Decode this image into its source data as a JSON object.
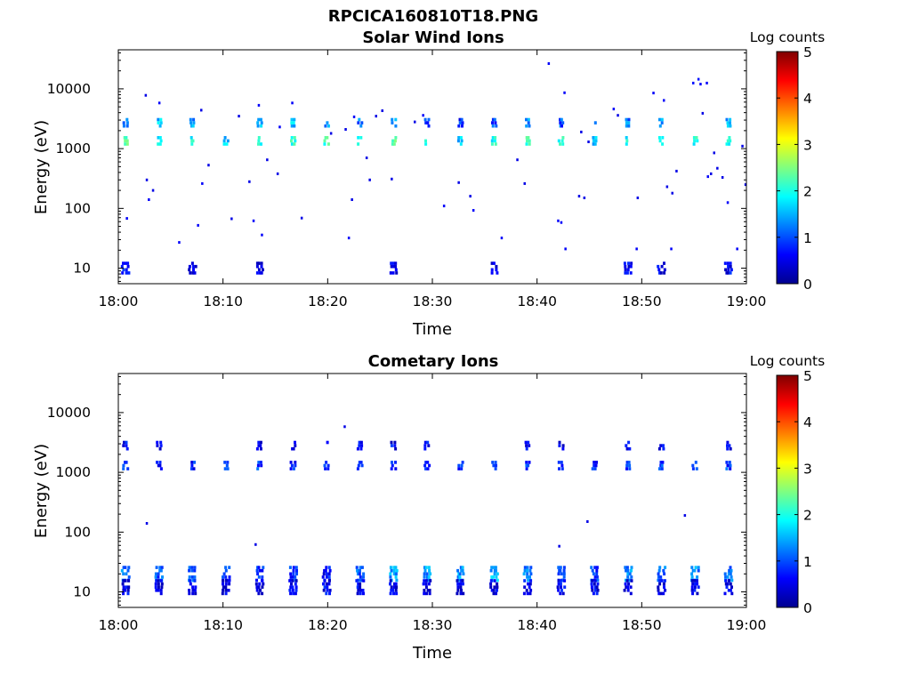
{
  "figure_title": "RPCICA160810T18.PNG",
  "colorbar": {
    "label": "Log counts",
    "ticks": [
      "0",
      "1",
      "2",
      "3",
      "4",
      "5"
    ]
  },
  "chart_data": [
    {
      "type": "heatmap",
      "title": "Solar Wind Ions",
      "xlabel": "Time",
      "ylabel": "Energy (eV)",
      "x_ticks": [
        "18:00",
        "18:10",
        "18:20",
        "18:30",
        "18:40",
        "18:50",
        "19:00"
      ],
      "y_ticks": [
        "10",
        "100",
        "1000",
        "10000"
      ],
      "xlim_minutes": [
        0,
        60
      ],
      "ylim_eV": [
        5.5,
        45000
      ],
      "yscale": "log",
      "zlim": [
        0,
        5
      ],
      "colormap": "jet",
      "dense_columns_minutes": [
        0.7,
        3.9,
        7.1,
        10.3,
        13.5,
        16.7,
        19.9,
        23.1,
        26.3,
        29.5,
        32.7,
        35.9,
        39.1,
        42.3,
        45.5,
        48.7,
        51.9,
        55.1,
        58.3
      ],
      "bands": [
        {
          "energy_eV": 2700,
          "log_counts": [
            1.2,
            1.6,
            1.4,
            0,
            1.5,
            1.6,
            1.3,
            1.2,
            1.5,
            1.0,
            0.8,
            0.9,
            1.4,
            1.0,
            0.9,
            1.2,
            1.3,
            0,
            1.5
          ]
        },
        {
          "energy_eV": 1350,
          "log_counts": [
            2.2,
            1.8,
            1.9,
            1.7,
            2.0,
            2.1,
            2.1,
            2.0,
            2.2,
            2.0,
            1.6,
            2.0,
            2.1,
            2.0,
            1.5,
            1.9,
            2.0,
            2.0,
            1.9
          ]
        },
        {
          "energy_eV": 10,
          "log_counts": [
            0.6,
            0,
            0.4,
            0,
            0.4,
            0,
            0,
            0,
            0.4,
            0,
            0,
            0.5,
            0,
            0,
            0,
            0.5,
            0.5,
            0,
            0.6
          ]
        }
      ],
      "scattered_points": [
        {
          "t": 0.8,
          "e": 68,
          "z": 0.6
        },
        {
          "t": 2.6,
          "e": 7800,
          "z": 0.5
        },
        {
          "t": 2.7,
          "e": 300,
          "z": 0.5
        },
        {
          "t": 2.9,
          "e": 140,
          "z": 0.6
        },
        {
          "t": 3.3,
          "e": 200,
          "z": 0.5
        },
        {
          "t": 3.9,
          "e": 5800,
          "z": 0.6
        },
        {
          "t": 5.8,
          "e": 27,
          "z": 0.6
        },
        {
          "t": 7.6,
          "e": 52,
          "z": 0.6
        },
        {
          "t": 7.9,
          "e": 4400,
          "z": 0.5
        },
        {
          "t": 8.0,
          "e": 260,
          "z": 0.6
        },
        {
          "t": 8.6,
          "e": 530,
          "z": 0.5
        },
        {
          "t": 10.8,
          "e": 67,
          "z": 0.5
        },
        {
          "t": 11.5,
          "e": 3500,
          "z": 0.5
        },
        {
          "t": 12.5,
          "e": 280,
          "z": 0.5
        },
        {
          "t": 12.9,
          "e": 62,
          "z": 0.6
        },
        {
          "t": 13.4,
          "e": 5300,
          "z": 0.6
        },
        {
          "t": 13.7,
          "e": 36,
          "z": 0.6
        },
        {
          "t": 14.2,
          "e": 650,
          "z": 0.5
        },
        {
          "t": 15.2,
          "e": 380,
          "z": 0.5
        },
        {
          "t": 15.4,
          "e": 2300,
          "z": 0.6
        },
        {
          "t": 16.6,
          "e": 5800,
          "z": 0.6
        },
        {
          "t": 17.5,
          "e": 69,
          "z": 0.5
        },
        {
          "t": 20.3,
          "e": 1800,
          "z": 0.5
        },
        {
          "t": 21.7,
          "e": 2100,
          "z": 0.5
        },
        {
          "t": 22.0,
          "e": 32,
          "z": 0.6
        },
        {
          "t": 22.3,
          "e": 140,
          "z": 0.5
        },
        {
          "t": 22.5,
          "e": 3400,
          "z": 0.6
        },
        {
          "t": 23.7,
          "e": 700,
          "z": 0.5
        },
        {
          "t": 24.0,
          "e": 300,
          "z": 0.5
        },
        {
          "t": 24.6,
          "e": 3500,
          "z": 0.5
        },
        {
          "t": 25.2,
          "e": 4300,
          "z": 0.5
        },
        {
          "t": 26.1,
          "e": 310,
          "z": 0.5
        },
        {
          "t": 28.3,
          "e": 2800,
          "z": 0.5
        },
        {
          "t": 29.1,
          "e": 3600,
          "z": 0.6
        },
        {
          "t": 31.1,
          "e": 110,
          "z": 0.6
        },
        {
          "t": 32.5,
          "e": 270,
          "z": 0.5
        },
        {
          "t": 33.6,
          "e": 160,
          "z": 0.5
        },
        {
          "t": 33.9,
          "e": 93,
          "z": 0.6
        },
        {
          "t": 36.6,
          "e": 32,
          "z": 0.6
        },
        {
          "t": 38.1,
          "e": 650,
          "z": 0.5
        },
        {
          "t": 38.8,
          "e": 260,
          "z": 0.5
        },
        {
          "t": 41.1,
          "e": 26500,
          "z": 0.6
        },
        {
          "t": 42.0,
          "e": 62,
          "z": 0.6
        },
        {
          "t": 42.3,
          "e": 58,
          "z": 0.6
        },
        {
          "t": 42.6,
          "e": 8600,
          "z": 0.6
        },
        {
          "t": 42.7,
          "e": 21,
          "z": 0.6
        },
        {
          "t": 44.0,
          "e": 160,
          "z": 0.5
        },
        {
          "t": 44.2,
          "e": 1900,
          "z": 0.5
        },
        {
          "t": 44.5,
          "e": 150,
          "z": 0.5
        },
        {
          "t": 44.9,
          "e": 1300,
          "z": 0.5
        },
        {
          "t": 47.3,
          "e": 4600,
          "z": 0.6
        },
        {
          "t": 47.7,
          "e": 3600,
          "z": 0.5
        },
        {
          "t": 49.5,
          "e": 21,
          "z": 0.6
        },
        {
          "t": 49.6,
          "e": 150,
          "z": 0.5
        },
        {
          "t": 51.1,
          "e": 8500,
          "z": 0.6
        },
        {
          "t": 52.1,
          "e": 6400,
          "z": 0.6
        },
        {
          "t": 52.4,
          "e": 230,
          "z": 0.5
        },
        {
          "t": 52.8,
          "e": 21,
          "z": 0.6
        },
        {
          "t": 52.9,
          "e": 180,
          "z": 0.5
        },
        {
          "t": 53.3,
          "e": 420,
          "z": 0.5
        },
        {
          "t": 54.9,
          "e": 12500,
          "z": 0.7
        },
        {
          "t": 55.4,
          "e": 14500,
          "z": 0.7
        },
        {
          "t": 55.6,
          "e": 12000,
          "z": 0.6
        },
        {
          "t": 55.8,
          "e": 3900,
          "z": 0.5
        },
        {
          "t": 56.2,
          "e": 12500,
          "z": 0.6
        },
        {
          "t": 56.3,
          "e": 340,
          "z": 0.6
        },
        {
          "t": 56.6,
          "e": 380,
          "z": 0.5
        },
        {
          "t": 56.9,
          "e": 850,
          "z": 0.5
        },
        {
          "t": 57.2,
          "e": 470,
          "z": 0.5
        },
        {
          "t": 57.7,
          "e": 330,
          "z": 0.5
        },
        {
          "t": 58.2,
          "e": 125,
          "z": 0.6
        },
        {
          "t": 59.1,
          "e": 21,
          "z": 0.6
        },
        {
          "t": 59.6,
          "e": 1100,
          "z": 0.5
        },
        {
          "t": 59.9,
          "e": 250,
          "z": 0.5
        }
      ]
    },
    {
      "type": "heatmap",
      "title": "Cometary Ions",
      "xlabel": "Time",
      "ylabel": "Energy (eV)",
      "x_ticks": [
        "18:00",
        "18:10",
        "18:20",
        "18:30",
        "18:40",
        "18:50",
        "19:00"
      ],
      "y_ticks": [
        "10",
        "100",
        "1000",
        "10000"
      ],
      "xlim_minutes": [
        0,
        60
      ],
      "ylim_eV": [
        5.5,
        45000
      ],
      "yscale": "log",
      "zlim": [
        0,
        5
      ],
      "colormap": "jet",
      "dense_columns_minutes": [
        0.7,
        3.9,
        7.1,
        10.3,
        13.5,
        16.7,
        19.9,
        23.1,
        26.3,
        29.5,
        32.7,
        35.9,
        39.1,
        42.3,
        45.5,
        48.7,
        51.9,
        55.1,
        58.3
      ],
      "bands": [
        {
          "energy_eV": 2800,
          "log_counts": [
            0.6,
            0.5,
            0,
            0,
            0.6,
            0.5,
            0.5,
            0.5,
            0.6,
            0.6,
            0,
            0,
            0.5,
            0.5,
            0,
            0.5,
            0.5,
            0,
            0.6
          ]
        },
        {
          "energy_eV": 1300,
          "log_counts": [
            0.9,
            0.7,
            0.8,
            0.8,
            0.9,
            0.8,
            0.8,
            0.9,
            0.8,
            0.7,
            0.8,
            0.9,
            0.9,
            0.8,
            0.8,
            0.9,
            0.9,
            0.9,
            0.9
          ]
        },
        {
          "energy_eV": 20,
          "log_counts": [
            1.2,
            1.0,
            1.1,
            0.9,
            0.8,
            0.9,
            0.7,
            1.0,
            1.4,
            1.4,
            1.4,
            1.5,
            1.3,
            0.9,
            0.9,
            1.3,
            1.2,
            1.3,
            1.2
          ]
        },
        {
          "energy_eV": 12,
          "log_counts": [
            0.5,
            0.4,
            0.6,
            0.4,
            0.5,
            0.5,
            0.6,
            0.5,
            0.5,
            0.4,
            0.4,
            0.5,
            0.5,
            0.6,
            0.5,
            0.5,
            0.5,
            0.5,
            0.5
          ]
        }
      ],
      "scattered_points": [
        {
          "t": 2.7,
          "e": 140,
          "z": 0.5
        },
        {
          "t": 13.1,
          "e": 62,
          "z": 0.5
        },
        {
          "t": 21.6,
          "e": 5800,
          "z": 0.5
        },
        {
          "t": 42.1,
          "e": 58,
          "z": 0.5
        },
        {
          "t": 44.8,
          "e": 150,
          "z": 0.5
        },
        {
          "t": 54.1,
          "e": 190,
          "z": 0.5
        }
      ]
    }
  ]
}
